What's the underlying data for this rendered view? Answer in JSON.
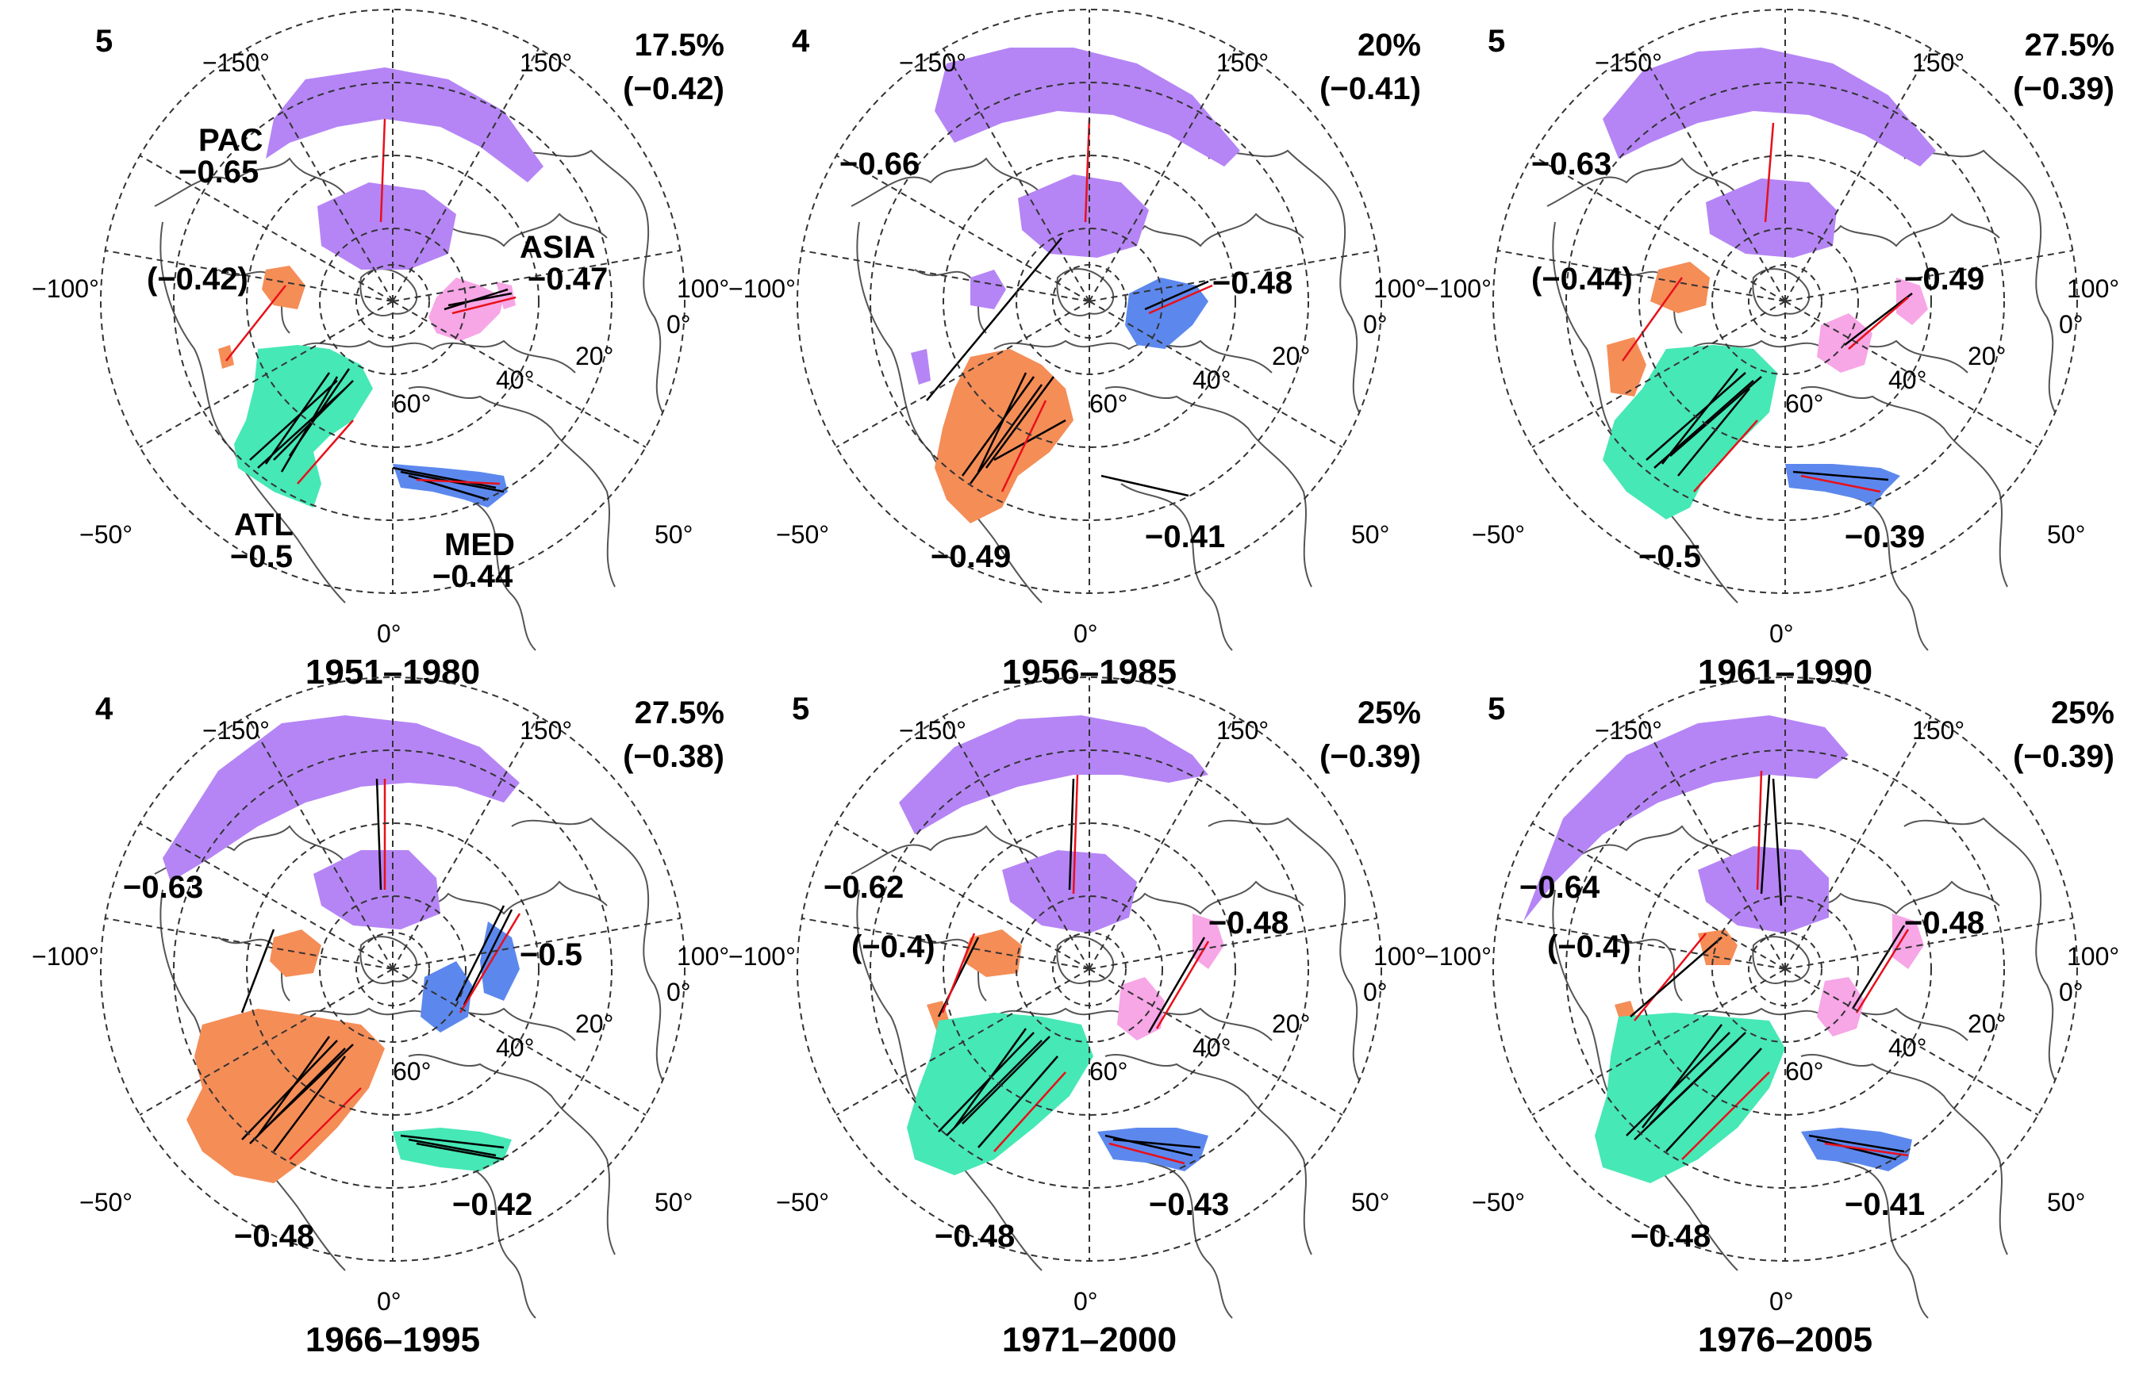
{
  "colors": {
    "PAC": "#b585f5",
    "ATL": "#46e8b5",
    "ASIA": "#f7a6e6",
    "MED": "#5c88ee",
    "orange": "#f58d57",
    "link_black": "#000000",
    "link_red": "#e8101a"
  },
  "longitude_labels": [
    "−150°",
    "150°",
    "−100°",
    "100°",
    "−50°",
    "50°",
    "0°"
  ],
  "latitude_labels": [
    "0°",
    "20°",
    "40°",
    "60°"
  ],
  "panels": [
    {
      "id": "p1",
      "count": "5",
      "percent": "17.5%",
      "overall": "(−0.42)",
      "period": "1951–1980",
      "regions": [
        {
          "name": "PAC",
          "value": "−0.65"
        },
        {
          "name": "",
          "value": "(−0.42)"
        },
        {
          "name": "ASIA",
          "value": "−0.47"
        },
        {
          "name": "ATL",
          "value": "−0.5"
        },
        {
          "name": "MED",
          "value": "−0.44"
        }
      ]
    },
    {
      "id": "p2",
      "count": "4",
      "percent": "20%",
      "overall": "(−0.41)",
      "period": "1956–1985",
      "regions": [
        {
          "name": "",
          "value": "−0.66"
        },
        {
          "name": "",
          "value": "−0.48"
        },
        {
          "name": "",
          "value": "−0.49"
        },
        {
          "name": "",
          "value": "−0.41"
        }
      ]
    },
    {
      "id": "p3",
      "count": "5",
      "percent": "27.5%",
      "overall": "(−0.39)",
      "period": "1961–1990",
      "regions": [
        {
          "name": "",
          "value": "−0.63"
        },
        {
          "name": "",
          "value": "(−0.44)"
        },
        {
          "name": "",
          "value": "−0.49"
        },
        {
          "name": "",
          "value": "−0.5"
        },
        {
          "name": "",
          "value": "−0.39"
        }
      ]
    },
    {
      "id": "p4",
      "count": "4",
      "percent": "27.5%",
      "overall": "(−0.38)",
      "period": "1966–1995",
      "regions": [
        {
          "name": "",
          "value": "−0.63"
        },
        {
          "name": "",
          "value": "−0.5"
        },
        {
          "name": "",
          "value": "−0.48"
        },
        {
          "name": "",
          "value": "−0.42"
        }
      ]
    },
    {
      "id": "p5",
      "count": "5",
      "percent": "25%",
      "overall": "(−0.39)",
      "period": "1971–2000",
      "regions": [
        {
          "name": "",
          "value": "−0.62"
        },
        {
          "name": "",
          "value": "(−0.4)"
        },
        {
          "name": "",
          "value": "−0.48"
        },
        {
          "name": "",
          "value": "−0.48"
        },
        {
          "name": "",
          "value": "−0.43"
        }
      ]
    },
    {
      "id": "p6",
      "count": "5",
      "percent": "25%",
      "overall": "(−0.39)",
      "period": "1976–2005",
      "regions": [
        {
          "name": "",
          "value": "−0.64"
        },
        {
          "name": "",
          "value": "(−0.4)"
        },
        {
          "name": "",
          "value": "−0.48"
        },
        {
          "name": "",
          "value": "−0.48"
        },
        {
          "name": "",
          "value": "−0.41"
        }
      ]
    }
  ]
}
